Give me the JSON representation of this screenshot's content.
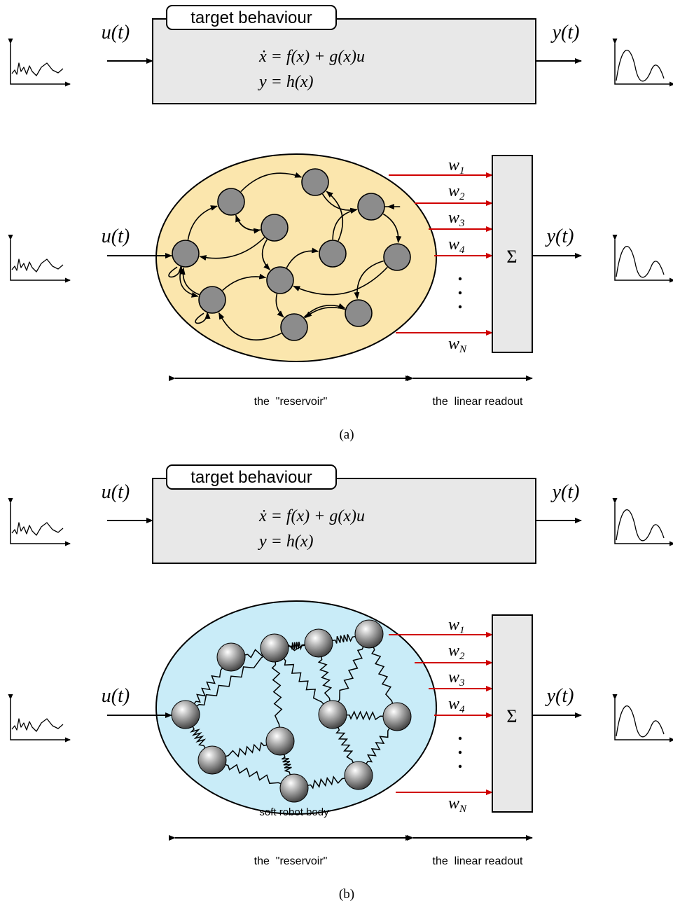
{
  "panels": [
    {
      "target": {
        "label": "target behaviour",
        "input": "u(t)",
        "output": "y(t)",
        "equations": [
          "ẋ = f(x) + g(x)u",
          "y = h(x)"
        ]
      },
      "reservoir": {
        "input": "u(t)",
        "output": "y(t)",
        "weights": [
          {
            "symbol": "w",
            "index": "1"
          },
          {
            "symbol": "w",
            "index": "2"
          },
          {
            "symbol": "w",
            "index": "3"
          },
          {
            "symbol": "w",
            "index": "4"
          },
          {
            "symbol": "w",
            "index": "N"
          }
        ],
        "sum": "Σ",
        "reservoir_label": "the  \"reservoir\"",
        "readout_label": "the  linear readout"
      },
      "caption": "(a)"
    },
    {
      "target": {
        "label": "target behaviour",
        "input": "u(t)",
        "output": "y(t)",
        "equations": [
          "ẋ = f(x) + g(x)u",
          "y = h(x)"
        ]
      },
      "reservoir": {
        "input": "u(t)",
        "output": "y(t)",
        "weights": [
          {
            "symbol": "w",
            "index": "1"
          },
          {
            "symbol": "w",
            "index": "2"
          },
          {
            "symbol": "w",
            "index": "3"
          },
          {
            "symbol": "w",
            "index": "4"
          },
          {
            "symbol": "w",
            "index": "N"
          }
        ],
        "sum": "Σ",
        "body_label": "soft robot body",
        "reservoir_label": "the  \"reservoir\"",
        "readout_label": "the  linear readout"
      },
      "caption": "(b)"
    }
  ]
}
